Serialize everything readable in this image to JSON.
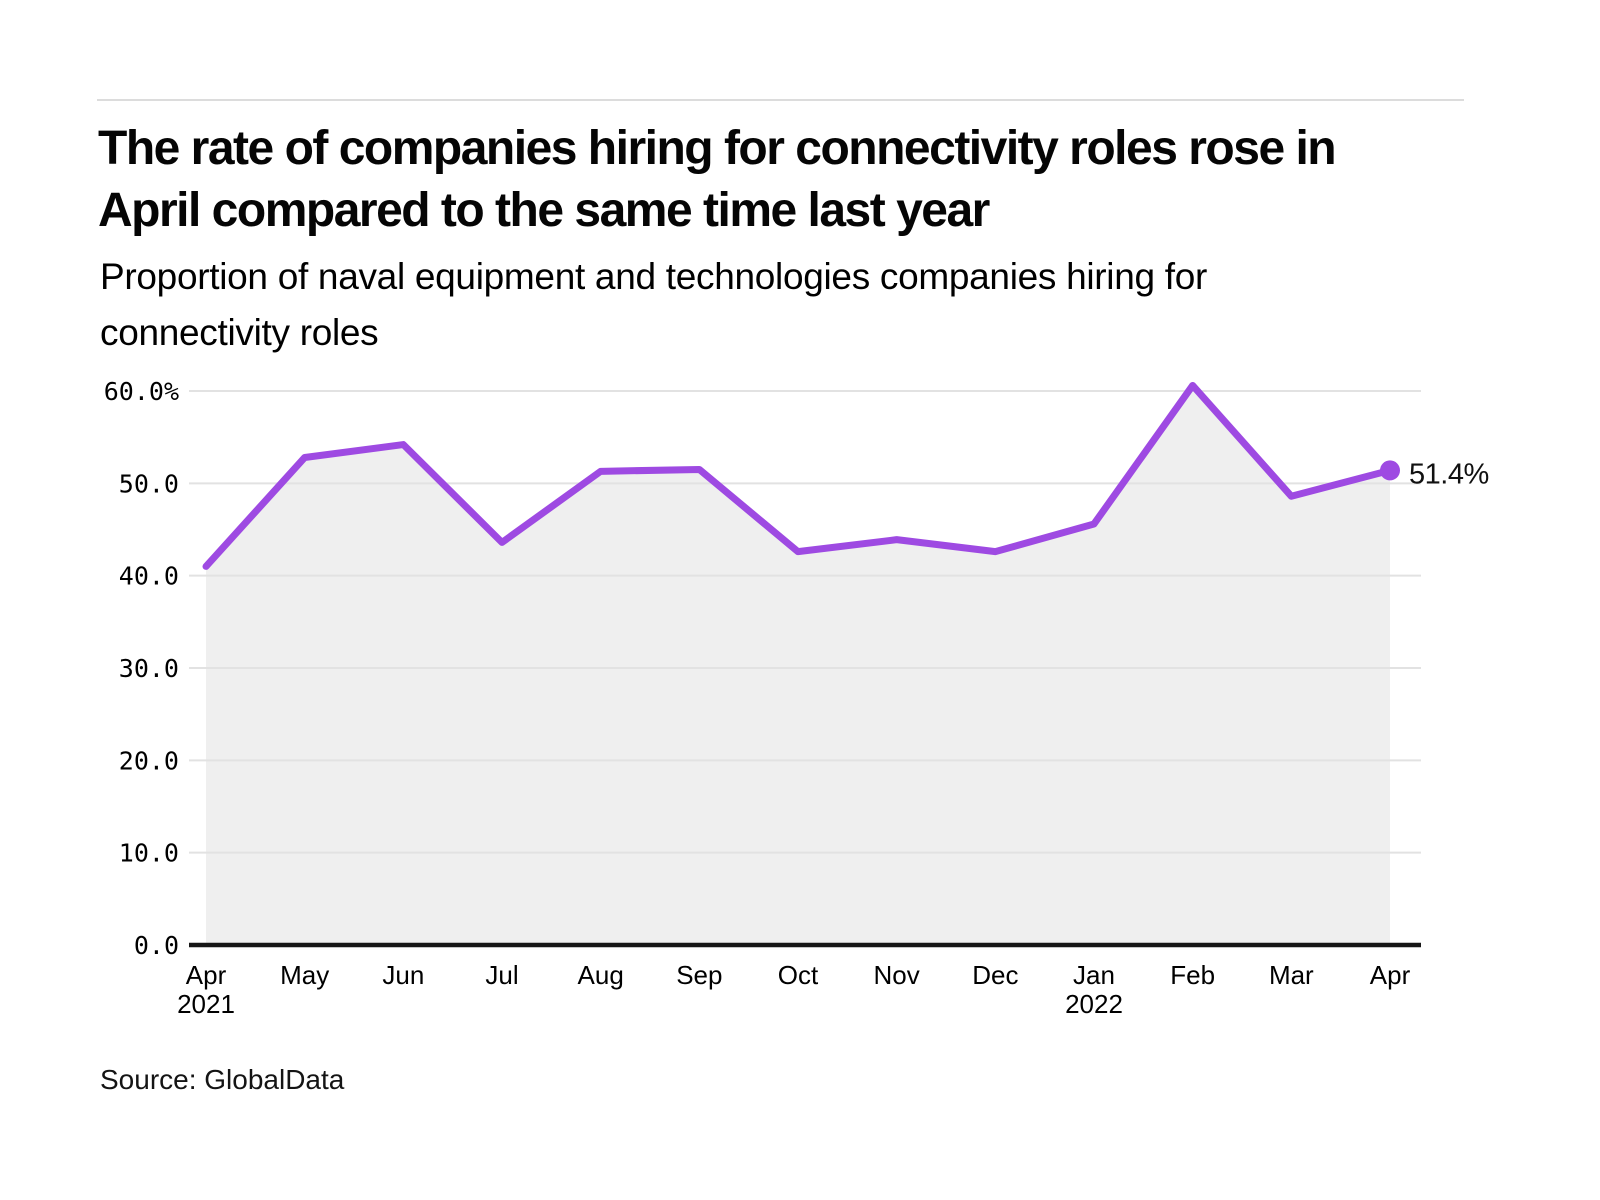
{
  "page": {
    "title_lines": [
      "The rate of companies hiring for connectivity roles rose in",
      "April compared to the same time last year"
    ],
    "subtitle_lines": [
      "Proportion of naval equipment and technologies companies hiring for",
      "connectivity roles"
    ],
    "source": "Source: GlobalData"
  },
  "chart_data": {
    "type": "area",
    "title": "Proportion of naval equipment and technologies companies hiring for connectivity roles",
    "x_tick_labels": [
      {
        "month": "Apr",
        "year": "2021"
      },
      {
        "month": "May"
      },
      {
        "month": "Jun"
      },
      {
        "month": "Jul"
      },
      {
        "month": "Aug"
      },
      {
        "month": "Sep"
      },
      {
        "month": "Oct"
      },
      {
        "month": "Nov"
      },
      {
        "month": "Dec"
      },
      {
        "month": "Jan",
        "year": "2022"
      },
      {
        "month": "Feb"
      },
      {
        "month": "Mar"
      },
      {
        "month": "Apr"
      }
    ],
    "values": [
      41.0,
      52.8,
      54.2,
      43.6,
      51.3,
      51.5,
      42.6,
      43.9,
      42.6,
      45.6,
      60.6,
      48.6,
      51.4
    ],
    "unit": "%",
    "ylim": [
      0,
      60
    ],
    "y_ticks": [
      {
        "value": 60,
        "label": "60.0%"
      },
      {
        "value": 50,
        "label": "50.0"
      },
      {
        "value": 40,
        "label": "40.0"
      },
      {
        "value": 30,
        "label": "30.0"
      },
      {
        "value": 20,
        "label": "20.0"
      },
      {
        "value": 10,
        "label": "10.0"
      },
      {
        "value": 0,
        "label": "0.0"
      }
    ],
    "grid": true,
    "legend": false,
    "last_point_label": "51.4%",
    "colors": {
      "line": "#9e4ae2",
      "area_fill": "#efefef",
      "gridline": "#e2e2e2",
      "axis": "#161616",
      "text": "#000000"
    }
  }
}
